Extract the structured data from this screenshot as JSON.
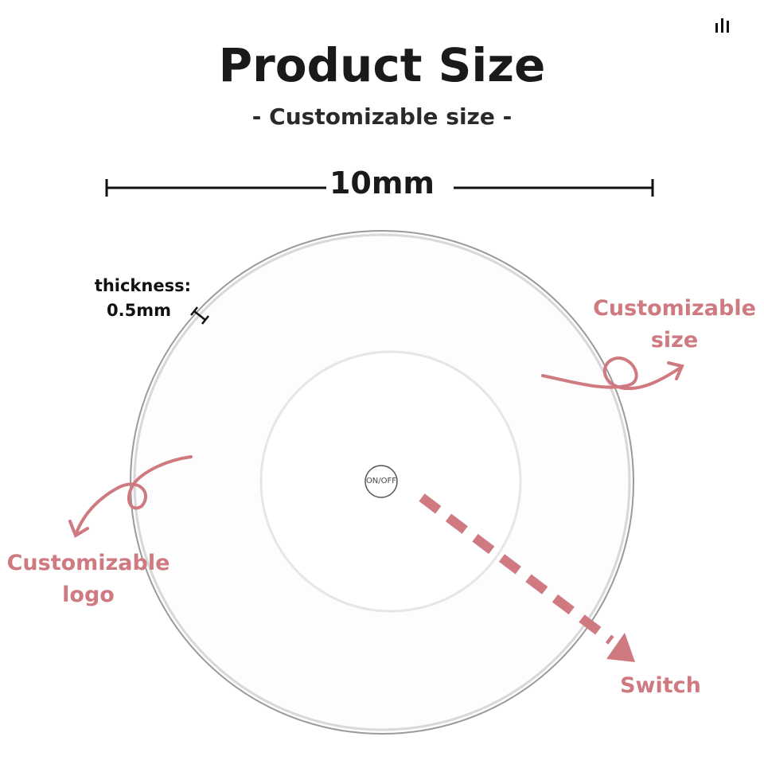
{
  "title": "Product Size",
  "subtitle": "- Customizable size -",
  "dimension": "10mm",
  "thickness": {
    "label": "thickness:",
    "value": "0.5mm"
  },
  "annotations": {
    "size": [
      "Customizable",
      "size"
    ],
    "logo": [
      "Customizable",
      "logo"
    ],
    "switch": "Switch"
  },
  "button_label": "ON/OFF",
  "icons": [
    "signal-bars-icon",
    "dimension-line-icon",
    "curly-arrow-icon",
    "dashed-arrow-icon"
  ],
  "colors": {
    "accent": "#cf7a80",
    "text": "#1a1a1a"
  }
}
